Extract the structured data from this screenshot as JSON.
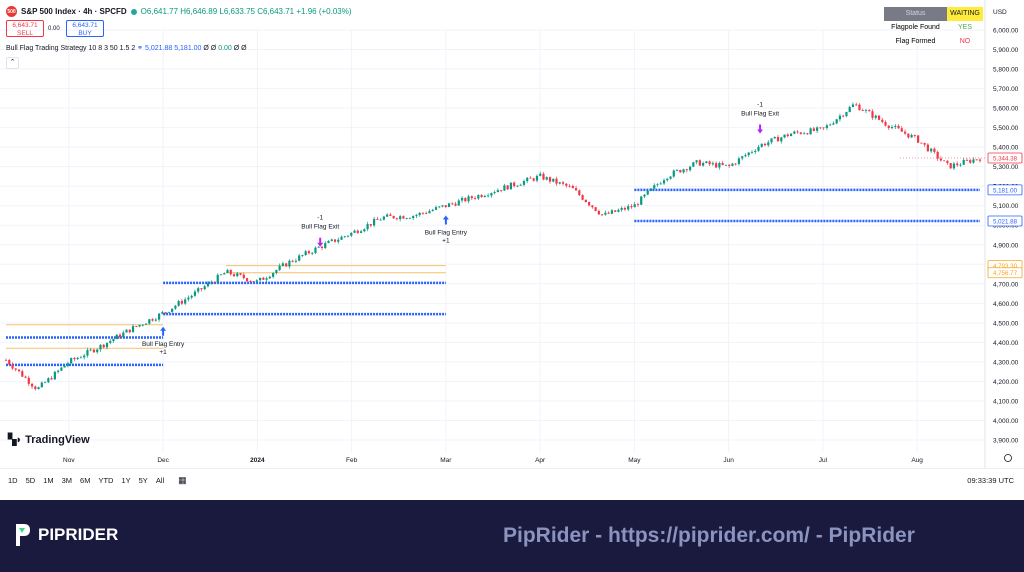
{
  "header": {
    "symbol": "S&P 500 Index · 4h · SPCFD",
    "ohlc": "O6,641.77 H6,646.89 L6,633.75 C6,643.71 +1.96 (+0.03%)",
    "logo_text": "500"
  },
  "trade": {
    "sell_price": "6,643.71",
    "sell_label": "SELL",
    "spread": "0.00",
    "buy_price": "6,643.71",
    "buy_label": "BUY"
  },
  "strategy": {
    "name": "Bull Flag Trading Strategy",
    "params": "10 8 3 50 1.5 2",
    "value1": "5,021.88",
    "value2": "5,181.00",
    "tail1": "Ø Ø",
    "value3": "0.00",
    "tail2": "Ø Ø"
  },
  "status_table": {
    "rows": [
      {
        "key": "Status",
        "value": "WAITING"
      },
      {
        "key": "Flagpole Found",
        "value": "YES"
      },
      {
        "key": "Flag Formed",
        "value": "NO"
      }
    ]
  },
  "currency": "USD",
  "branding": {
    "tradingview": "TradingView"
  },
  "ranges": [
    "1D",
    "5D",
    "1M",
    "3M",
    "6M",
    "YTD",
    "1Y",
    "5Y",
    "All"
  ],
  "clock": "09:33:39 UTC",
  "banner": {
    "brand": "PIPRIDER",
    "watermark": "PipRider - https://piprider.com/ - PipRider"
  },
  "colors": {
    "up": "#089981",
    "down": "#f23645",
    "level": "#2962ff",
    "flag": "#f5c26b",
    "signal": "#b721ff"
  },
  "chart_data": {
    "type": "candlestick",
    "x": [
      "Oct-15",
      "Oct-25",
      "Nov",
      "Nov-10",
      "Nov-20",
      "Dec",
      "Dec-10",
      "Dec-20",
      "2024",
      "Jan-10",
      "Jan-20",
      "Feb",
      "Feb-10",
      "Feb-20",
      "Mar",
      "Mar-10",
      "Mar-20",
      "Apr",
      "Apr-10",
      "Apr-20",
      "May",
      "May-10",
      "May-20",
      "Jun",
      "Jun-10",
      "Jun-20",
      "Jul",
      "Jul-10",
      "Jul-20",
      "Aug",
      "Aug-05",
      "Aug-10"
    ],
    "close": [
      4310,
      4160,
      4300,
      4380,
      4470,
      4550,
      4650,
      4760,
      4710,
      4810,
      4890,
      4960,
      5040,
      5050,
      5100,
      5150,
      5200,
      5250,
      5190,
      5050,
      5100,
      5250,
      5320,
      5300,
      5410,
      5470,
      5490,
      5620,
      5520,
      5440,
      5300,
      5345
    ],
    "xaxis_labels": [
      {
        "label": "Nov",
        "x": "Nov"
      },
      {
        "label": "Dec",
        "x": "Dec"
      },
      {
        "label": "2024",
        "x": "2024"
      },
      {
        "label": "Feb",
        "x": "Feb"
      },
      {
        "label": "Mar",
        "x": "Mar"
      },
      {
        "label": "Apr",
        "x": "Apr"
      },
      {
        "label": "May",
        "x": "May"
      },
      {
        "label": "Jun",
        "x": "Jun"
      },
      {
        "label": "Jul",
        "x": "Jul"
      },
      {
        "label": "Aug",
        "x": "Aug"
      }
    ],
    "ylim": [
      3900,
      6000
    ],
    "yticks": [
      "3,900.00",
      "4,000.00",
      "4,100.00",
      "4,200.00",
      "4,300.00",
      "4,400.00",
      "4,500.00",
      "4,600.00",
      "4,700.00",
      "4,800.00",
      "4,900.00",
      "5,000.00",
      "5,100.00",
      "5,200.00",
      "5,300.00",
      "5,400.00",
      "5,500.00",
      "5,600.00",
      "5,700.00",
      "5,800.00",
      "5,900.00",
      "6,000.00"
    ],
    "price_tags": [
      {
        "label": "5,344.38",
        "value": 5344.38,
        "color": "#f23645"
      },
      {
        "label": "5,181.00",
        "value": 5181.0,
        "color": "#2962ff"
      },
      {
        "label": "5,021.88",
        "value": 5021.88,
        "color": "#2962ff"
      },
      {
        "label": "4,793.30",
        "value": 4793.3,
        "color": "#f5a623"
      },
      {
        "label": "4,756.77",
        "value": 4756.77,
        "color": "#f5a623"
      }
    ],
    "levels": [
      {
        "value": 4425,
        "x_from": "Oct-15",
        "x_to": "Dec"
      },
      {
        "value": 4285,
        "x_from": "Oct-15",
        "x_to": "Dec"
      },
      {
        "value": 4705,
        "x_from": "Dec",
        "x_to": "Mar"
      },
      {
        "value": 4545,
        "x_from": "Dec",
        "x_to": "Mar"
      },
      {
        "value": 5181,
        "x_from": "May",
        "x_to": "Aug-10"
      },
      {
        "value": 5021.88,
        "x_from": "May",
        "x_to": "Aug-10"
      }
    ],
    "flag_lines": [
      {
        "value": 4490,
        "x_from": "Oct-15",
        "x_to": "Dec"
      },
      {
        "value": 4370,
        "x_from": "Oct-15",
        "x_to": "Dec"
      },
      {
        "value": 4793.3,
        "x_from": "Dec-20",
        "x_to": "Mar"
      },
      {
        "value": 4756.77,
        "x_from": "Dec-20",
        "x_to": "Mar"
      }
    ],
    "signals": [
      {
        "text": "Bull Flag Entry",
        "qty": "+1",
        "kind": "entry",
        "x": "Dec",
        "y": 4480
      },
      {
        "text": "Bull Flag Exit",
        "qty": "-1",
        "kind": "exit",
        "x": "Jan-20",
        "y": 4890
      },
      {
        "text": "Bull Flag Entry",
        "qty": "+1",
        "kind": "entry",
        "x": "Mar",
        "y": 5050
      },
      {
        "text": "Bull Flag Exit",
        "qty": "-1",
        "kind": "exit",
        "x": "Jun-10",
        "y": 5470
      }
    ]
  }
}
